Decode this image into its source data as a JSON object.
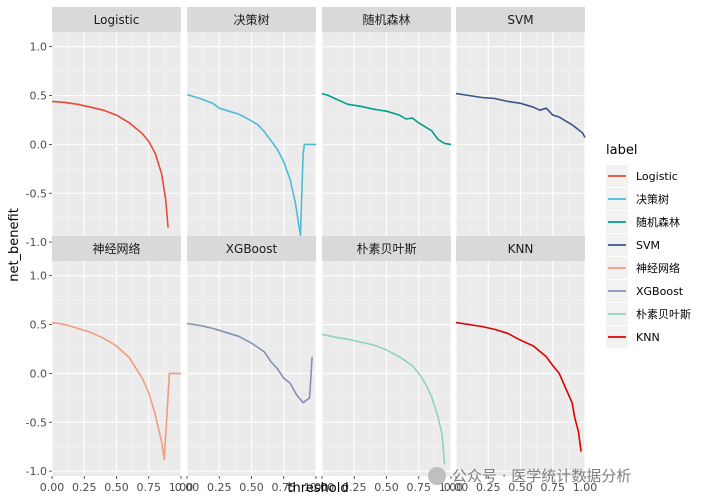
{
  "chart_data": {
    "type": "line",
    "xlabel": "threshold",
    "ylabel": "net_benefit",
    "xlim": [
      0,
      1
    ],
    "ylim": [
      -1.05,
      1.15
    ],
    "xticks": [
      "0.00",
      "0.25",
      "0.50",
      "0.75",
      "1.00"
    ],
    "yticks": [
      "-1.0",
      "-0.5",
      "0.0",
      "0.5",
      "1.0"
    ],
    "legend_title": "label",
    "legend_position": "right",
    "grid": true,
    "panels": [
      {
        "name": "Logistic",
        "color": "#E64B35",
        "points": [
          [
            0,
            0.44
          ],
          [
            0.1,
            0.43
          ],
          [
            0.2,
            0.41
          ],
          [
            0.3,
            0.38
          ],
          [
            0.4,
            0.35
          ],
          [
            0.5,
            0.3
          ],
          [
            0.6,
            0.22
          ],
          [
            0.7,
            0.11
          ],
          [
            0.75,
            0.03
          ],
          [
            0.8,
            -0.09
          ],
          [
            0.85,
            -0.3
          ],
          [
            0.88,
            -0.55
          ],
          [
            0.9,
            -0.85
          ]
        ]
      },
      {
        "name": "决策树",
        "color": "#4DBBD5",
        "points": [
          [
            0,
            0.51
          ],
          [
            0.1,
            0.47
          ],
          [
            0.2,
            0.42
          ],
          [
            0.25,
            0.37
          ],
          [
            0.3,
            0.35
          ],
          [
            0.4,
            0.31
          ],
          [
            0.5,
            0.24
          ],
          [
            0.55,
            0.2
          ],
          [
            0.6,
            0.13
          ],
          [
            0.7,
            -0.05
          ],
          [
            0.75,
            -0.18
          ],
          [
            0.8,
            -0.36
          ],
          [
            0.84,
            -0.6
          ],
          [
            0.87,
            -0.85
          ],
          [
            0.88,
            -0.93
          ],
          [
            0.89,
            -0.5
          ],
          [
            0.9,
            -0.1
          ],
          [
            0.91,
            0
          ],
          [
            1.0,
            0
          ]
        ]
      },
      {
        "name": "随机森林",
        "color": "#00A087",
        "points": [
          [
            0,
            0.52
          ],
          [
            0.05,
            0.5
          ],
          [
            0.1,
            0.47
          ],
          [
            0.2,
            0.41
          ],
          [
            0.3,
            0.39
          ],
          [
            0.4,
            0.36
          ],
          [
            0.5,
            0.34
          ],
          [
            0.6,
            0.3
          ],
          [
            0.65,
            0.26
          ],
          [
            0.7,
            0.27
          ],
          [
            0.75,
            0.22
          ],
          [
            0.8,
            0.18
          ],
          [
            0.85,
            0.14
          ],
          [
            0.9,
            0.05
          ],
          [
            0.95,
            0.01
          ],
          [
            1.0,
            0
          ]
        ]
      },
      {
        "name": "SVM",
        "color": "#3C5488",
        "points": [
          [
            0,
            0.52
          ],
          [
            0.1,
            0.5
          ],
          [
            0.2,
            0.48
          ],
          [
            0.3,
            0.47
          ],
          [
            0.4,
            0.44
          ],
          [
            0.5,
            0.42
          ],
          [
            0.6,
            0.38
          ],
          [
            0.65,
            0.35
          ],
          [
            0.7,
            0.37
          ],
          [
            0.75,
            0.3
          ],
          [
            0.8,
            0.28
          ],
          [
            0.85,
            0.24
          ],
          [
            0.9,
            0.2
          ],
          [
            0.95,
            0.15
          ],
          [
            0.98,
            0.12
          ],
          [
            1.0,
            0.07
          ]
        ]
      },
      {
        "name": "神经网络",
        "color": "#F39B7F",
        "points": [
          [
            0,
            0.52
          ],
          [
            0.1,
            0.5
          ],
          [
            0.2,
            0.46
          ],
          [
            0.3,
            0.42
          ],
          [
            0.4,
            0.36
          ],
          [
            0.5,
            0.28
          ],
          [
            0.6,
            0.16
          ],
          [
            0.7,
            -0.05
          ],
          [
            0.75,
            -0.2
          ],
          [
            0.8,
            -0.42
          ],
          [
            0.85,
            -0.7
          ],
          [
            0.87,
            -0.88
          ],
          [
            0.91,
            0.0
          ],
          [
            1.0,
            0.0
          ]
        ]
      },
      {
        "name": "XGBoost",
        "color": "#8491B4",
        "points": [
          [
            0,
            0.51
          ],
          [
            0.1,
            0.49
          ],
          [
            0.2,
            0.46
          ],
          [
            0.3,
            0.42
          ],
          [
            0.4,
            0.38
          ],
          [
            0.5,
            0.31
          ],
          [
            0.6,
            0.22
          ],
          [
            0.65,
            0.12
          ],
          [
            0.7,
            0.05
          ],
          [
            0.75,
            -0.05
          ],
          [
            0.8,
            -0.1
          ],
          [
            0.85,
            -0.22
          ],
          [
            0.9,
            -0.3
          ],
          [
            0.95,
            -0.25
          ],
          [
            0.97,
            0.17
          ]
        ]
      },
      {
        "name": "朴素贝叶斯",
        "color": "#91D1C2",
        "points": [
          [
            0,
            0.4
          ],
          [
            0.1,
            0.37
          ],
          [
            0.2,
            0.35
          ],
          [
            0.3,
            0.32
          ],
          [
            0.4,
            0.29
          ],
          [
            0.5,
            0.24
          ],
          [
            0.6,
            0.17
          ],
          [
            0.7,
            0.08
          ],
          [
            0.75,
            0.0
          ],
          [
            0.8,
            -0.1
          ],
          [
            0.85,
            -0.24
          ],
          [
            0.9,
            -0.45
          ],
          [
            0.93,
            -0.62
          ],
          [
            0.95,
            -0.93
          ]
        ]
      },
      {
        "name": "KNN",
        "color": "#DC0000",
        "points": [
          [
            0,
            0.52
          ],
          [
            0.1,
            0.5
          ],
          [
            0.2,
            0.48
          ],
          [
            0.3,
            0.45
          ],
          [
            0.4,
            0.41
          ],
          [
            0.5,
            0.34
          ],
          [
            0.6,
            0.28
          ],
          [
            0.7,
            0.17
          ],
          [
            0.75,
            0.08
          ],
          [
            0.8,
            0.0
          ],
          [
            0.85,
            -0.15
          ],
          [
            0.9,
            -0.3
          ],
          [
            0.92,
            -0.45
          ],
          [
            0.95,
            -0.6
          ],
          [
            0.97,
            -0.8
          ]
        ]
      }
    ]
  },
  "watermark": {
    "text": "公众号 · 医学统计数据分析"
  }
}
